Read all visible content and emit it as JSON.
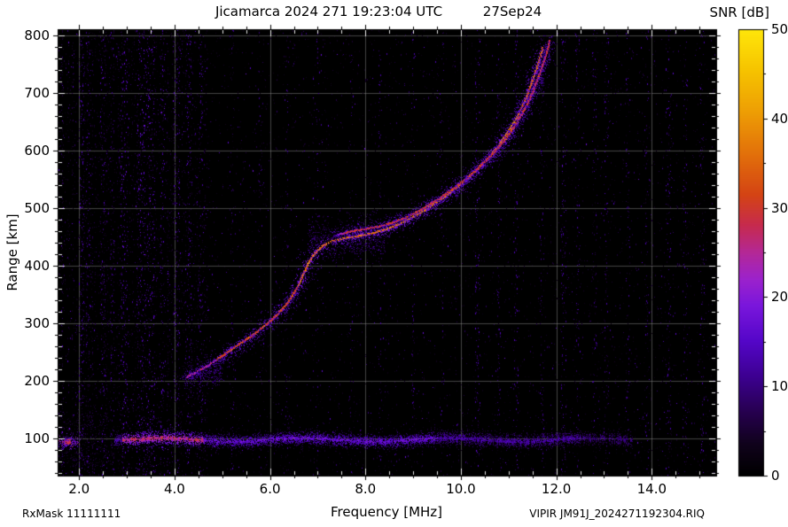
{
  "header": {
    "title": "Jicamarca 2024 271 19:23:04 UTC",
    "date": "27Sep24"
  },
  "footer": {
    "left": "RxMask 11111111",
    "right": "VIPIR  JM91J_2024271192304.RIQ"
  },
  "colorbar": {
    "title": "SNR [dB]",
    "min": 0,
    "max": 50,
    "tick_values": [
      0,
      10,
      20,
      30,
      40,
      50
    ],
    "tick_labels": [
      "0",
      "10",
      "20",
      "30",
      "40",
      "50"
    ],
    "minor_step": 5,
    "palette_stops": [
      [
        0.0,
        "#000000"
      ],
      [
        0.07,
        "#10021c"
      ],
      [
        0.14,
        "#26004e"
      ],
      [
        0.22,
        "#3c0090"
      ],
      [
        0.3,
        "#5406c8"
      ],
      [
        0.38,
        "#7a16dc"
      ],
      [
        0.44,
        "#9c22cc"
      ],
      [
        0.5,
        "#b42896"
      ],
      [
        0.56,
        "#c62a4e"
      ],
      [
        0.63,
        "#d44414"
      ],
      [
        0.72,
        "#e2700a"
      ],
      [
        0.82,
        "#eea004"
      ],
      [
        0.91,
        "#f6c400"
      ],
      [
        1.0,
        "#ffe60a"
      ]
    ]
  },
  "axes": {
    "x": {
      "label": "Frequency [MHz]",
      "min": 1.55,
      "max": 15.35,
      "tick_values": [
        2,
        4,
        6,
        8,
        10,
        12,
        14
      ],
      "tick_labels": [
        "2.0",
        "4.0",
        "6.0",
        "8.0",
        "10.0",
        "12.0",
        "14.0"
      ],
      "minor_step": 0.5
    },
    "y": {
      "label": "Range [km]",
      "min": 35,
      "max": 810,
      "tick_values": [
        100,
        200,
        300,
        400,
        500,
        600,
        700,
        800
      ],
      "tick_labels": [
        "100",
        "200",
        "300",
        "400",
        "500",
        "600",
        "700",
        "800"
      ],
      "minor_step": 20
    }
  },
  "chart_data": {
    "type": "heatmap",
    "title": "Jicamarca 2024 271 19:23:04 UTC  27Sep24",
    "xlabel": "Frequency [MHz]",
    "ylabel": "Range [km]",
    "colorbar_label": "SNR [dB]",
    "xlim": [
      1.55,
      15.35
    ],
    "ylim": [
      35,
      810
    ],
    "snr_range_db": [
      0,
      50
    ],
    "grid": true,
    "f_region_trace": {
      "description": "main ionogram echo trace, O-mode",
      "points_mhz_km": [
        [
          4.25,
          205
        ],
        [
          4.45,
          213
        ],
        [
          4.65,
          222
        ],
        [
          4.85,
          233
        ],
        [
          5.05,
          244
        ],
        [
          5.25,
          256
        ],
        [
          5.45,
          267
        ],
        [
          5.65,
          278
        ],
        [
          5.85,
          291
        ],
        [
          6.05,
          305
        ],
        [
          6.2,
          317
        ],
        [
          6.35,
          331
        ],
        [
          6.5,
          349
        ],
        [
          6.62,
          367
        ],
        [
          6.72,
          386
        ],
        [
          6.82,
          404
        ],
        [
          6.95,
          420
        ],
        [
          7.1,
          432
        ],
        [
          7.3,
          441
        ],
        [
          7.55,
          446
        ],
        [
          7.85,
          450
        ],
        [
          8.15,
          455
        ],
        [
          8.45,
          462
        ],
        [
          8.75,
          472
        ],
        [
          9.05,
          485
        ],
        [
          9.35,
          500
        ],
        [
          9.65,
          517
        ],
        [
          9.95,
          536
        ],
        [
          10.25,
          558
        ],
        [
          10.55,
          583
        ],
        [
          10.8,
          607
        ],
        [
          11.0,
          631
        ],
        [
          11.2,
          659
        ],
        [
          11.38,
          690
        ],
        [
          11.52,
          722
        ],
        [
          11.64,
          752
        ],
        [
          11.73,
          778
        ]
      ],
      "peak_snr_db": 40,
      "x_mode_offset_mhz": 0.15,
      "x_mode_offset_km": 12,
      "x_mode_start_mhz": 7.2
    },
    "e_region_band": {
      "center_km": 97,
      "freq_start_mhz": 2.75,
      "freq_end_mhz": 13.6,
      "thickness_km": 16,
      "strong_segment_mhz": [
        2.9,
        4.6
      ],
      "snr_db_strong": 24,
      "snr_db_weak": 12
    },
    "left_edge_blob": {
      "freq_mhz": 1.78,
      "range_km": 93,
      "snr_db": 28
    },
    "cusp_cloud": {
      "freq_mhz": [
        6.8,
        8.4
      ],
      "range_km": [
        410,
        478
      ],
      "snr_db": 14
    },
    "rfi_stripes": [
      [
        2.05,
        0.05,
        10,
        14
      ],
      [
        2.2,
        0.04,
        6,
        12
      ],
      [
        2.5,
        0.05,
        7,
        13
      ],
      [
        2.7,
        0.04,
        6,
        12
      ],
      [
        2.95,
        0.07,
        12,
        15
      ],
      [
        3.3,
        0.09,
        16,
        16
      ],
      [
        3.5,
        0.08,
        14,
        16
      ],
      [
        3.75,
        0.05,
        8,
        14
      ],
      [
        4.05,
        0.06,
        10,
        15
      ],
      [
        4.3,
        0.06,
        9,
        14
      ],
      [
        4.55,
        0.04,
        6,
        13
      ],
      [
        5.2,
        0.03,
        3,
        11
      ],
      [
        5.8,
        0.03,
        3,
        11
      ],
      [
        6.35,
        0.03,
        3,
        11
      ],
      [
        7.0,
        0.03,
        3,
        11
      ],
      [
        7.7,
        0.03,
        3,
        11
      ],
      [
        8.3,
        0.03,
        4,
        12
      ],
      [
        9.0,
        0.03,
        4,
        12
      ],
      [
        9.6,
        0.04,
        4,
        12
      ],
      [
        10.35,
        0.05,
        7,
        14
      ],
      [
        10.8,
        0.04,
        5,
        12
      ],
      [
        11.15,
        0.05,
        6,
        13
      ],
      [
        11.7,
        0.04,
        5,
        12
      ],
      [
        12.15,
        0.05,
        7,
        13
      ],
      [
        12.45,
        0.04,
        5,
        12
      ],
      [
        12.8,
        0.04,
        5,
        12
      ],
      [
        13.05,
        0.05,
        6,
        13
      ],
      [
        13.5,
        0.04,
        5,
        12
      ],
      [
        13.9,
        0.04,
        4,
        12
      ],
      [
        14.35,
        0.05,
        6,
        13
      ],
      [
        14.7,
        0.04,
        5,
        12
      ],
      [
        15.05,
        0.05,
        6,
        13
      ]
    ],
    "background_noise": {
      "snr_db_typical": 8,
      "dense_below_mhz": 4.7
    }
  }
}
